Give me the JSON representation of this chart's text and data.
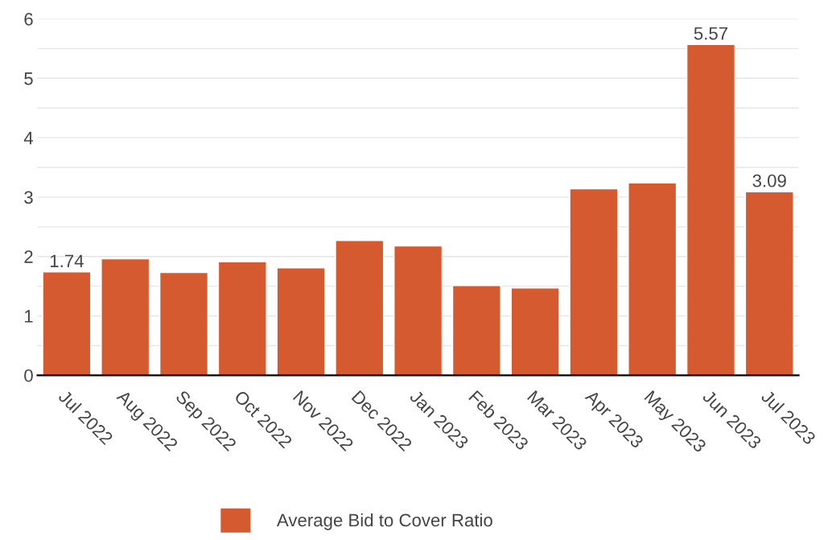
{
  "chart_data": {
    "type": "bar",
    "categories": [
      "Jul 2022",
      "Aug 2022",
      "Sep 2022",
      "Oct 2022",
      "Nov 2022",
      "Dec 2022",
      "Jan 2023",
      "Feb 2023",
      "Mar 2023",
      "Apr 2023",
      "May 2023",
      "Jun 2023",
      "Jul 2023"
    ],
    "series": [
      {
        "name": "Average Bid to Cover Ratio",
        "color": "#d65a30",
        "values": [
          1.74,
          1.96,
          1.73,
          1.91,
          1.81,
          2.27,
          2.18,
          1.51,
          1.47,
          3.14,
          3.24,
          5.57,
          3.09
        ],
        "value_labels": [
          "1.74",
          null,
          null,
          null,
          null,
          null,
          null,
          null,
          null,
          null,
          null,
          "5.57",
          "3.09"
        ]
      }
    ],
    "ylim": [
      0,
      6
    ],
    "yticks": [
      0,
      {
        "value": 0.5,
        "label": null
      },
      1,
      {
        "value": 1.5,
        "label": null
      },
      2,
      {
        "value": 2.5,
        "label": null
      },
      3,
      {
        "value": 3.5,
        "label": null
      },
      4,
      {
        "value": 4.5,
        "label": null
      },
      5,
      {
        "value": 5.5,
        "label": null
      },
      6
    ],
    "grid": "y",
    "legend": "bottom"
  }
}
